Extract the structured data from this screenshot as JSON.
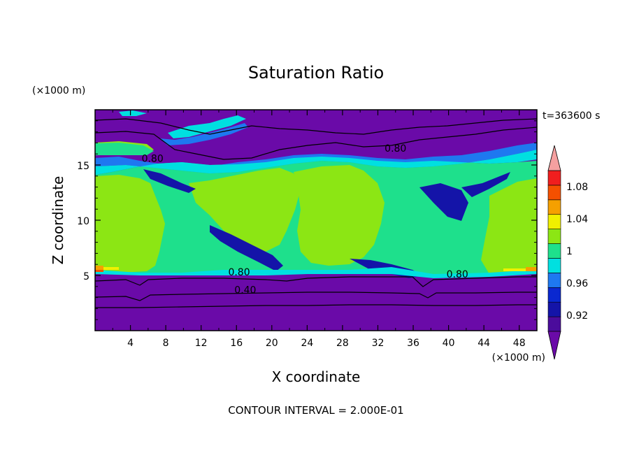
{
  "chart_data": {
    "type": "heatmap",
    "title": "Saturation Ratio",
    "xlabel": "X coordinate",
    "ylabel": "Z coordinate",
    "x_units": "(×1000 m)",
    "y_units": "(×1000 m)",
    "time_label": "t=363600 s",
    "footer": "CONTOUR INTERVAL = 2.000E-01",
    "xlim": [
      0,
      50
    ],
    "ylim": [
      0,
      20
    ],
    "x_ticks": [
      "4",
      "8",
      "12",
      "16",
      "20",
      "24",
      "28",
      "32",
      "36",
      "40",
      "44",
      "48"
    ],
    "y_ticks": [
      "5",
      "10",
      "15"
    ],
    "x_tick_values": [
      4,
      8,
      12,
      16,
      20,
      24,
      28,
      32,
      36,
      40,
      44,
      48
    ],
    "y_tick_values": [
      5,
      10,
      15
    ],
    "colorbar": {
      "labels": [
        "0.92",
        "0.96",
        "1",
        "1.04",
        "1.08"
      ],
      "label_values": [
        0.92,
        0.96,
        1.0,
        1.04,
        1.08
      ],
      "levels": [
        0.9,
        0.92,
        0.94,
        0.96,
        0.98,
        1.0,
        1.02,
        1.04,
        1.06,
        1.08,
        1.1
      ],
      "colors": [
        "#4B0C9C",
        "#1414A8",
        "#0A28D0",
        "#1E78F0",
        "#00E0E0",
        "#1EE08C",
        "#8CE614",
        "#F0F000",
        "#F5A000",
        "#F55000",
        "#F01E1E"
      ],
      "over_color": "#F5A0A0",
      "under_color": "#6A0AA8"
    },
    "contour_labels": [
      {
        "text": "0.80",
        "x": 6.5,
        "y": 15.3
      },
      {
        "text": "0.80",
        "x": 34.0,
        "y": 16.2
      },
      {
        "text": "0.80",
        "x": 16.3,
        "y": 5.0
      },
      {
        "text": "0.80",
        "x": 41.0,
        "y": 4.8
      },
      {
        "text": "0.40",
        "x": 17.0,
        "y": 3.4
      }
    ],
    "bands": [
      {
        "range": [
          0,
          4.9
        ],
        "value": "< 0.90",
        "color": "#6A0AA8"
      },
      {
        "range": [
          5.0,
          14.0
        ],
        "value": "0.98–1.02",
        "color": "#8CE614"
      },
      {
        "range": [
          14.0,
          16.0
        ],
        "value": "0.90–1.02",
        "color": "#1EE08C"
      },
      {
        "range": [
          16.0,
          20.0
        ],
        "value": "< 0.90",
        "color": "#6A0AA8"
      }
    ]
  }
}
